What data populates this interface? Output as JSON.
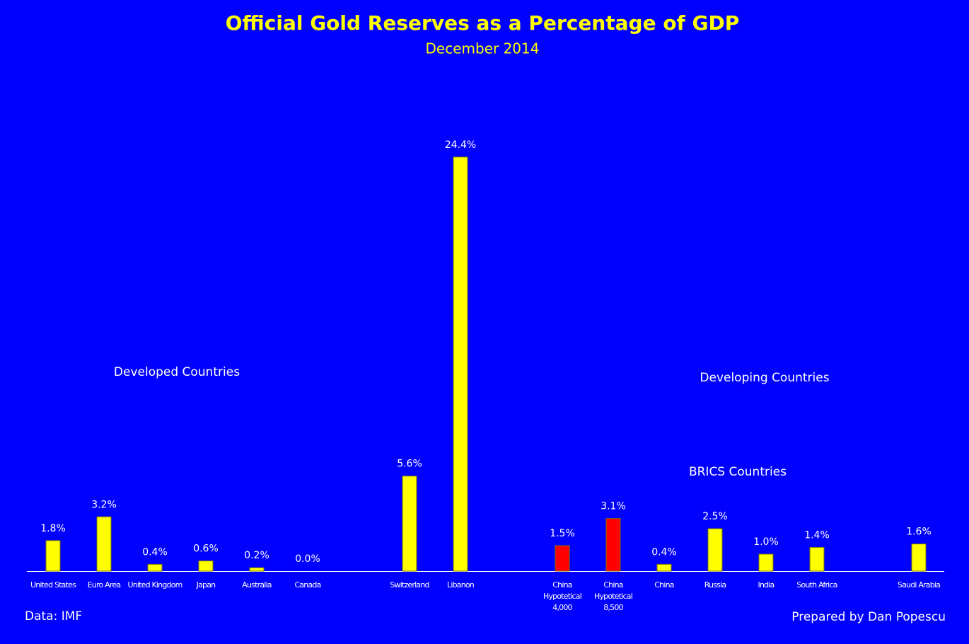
{
  "chart_data": {
    "type": "bar",
    "title": "Official Gold Reserves as a Percentage of GDP",
    "subtitle": "December 2014",
    "annotations": [
      "Developed Countries",
      "Developing Countries",
      "BRICS Countries",
      "Data: IMF",
      "Prepared by Dan Popescu"
    ],
    "categories": [
      "United States",
      "Euro Area",
      "United Kingdom",
      "Japan",
      "Australia",
      "Canada",
      null,
      "Switzerland",
      "Libanon",
      null,
      "China\nHypotetical\n4,000",
      "China\nHypotetical\n8,500",
      "China",
      "Russia",
      "India",
      "South Africa",
      null,
      "Saudi Arabia"
    ],
    "values": [
      1.8,
      3.2,
      0.4,
      0.6,
      0.2,
      0.0,
      null,
      5.6,
      24.4,
      null,
      1.5,
      3.1,
      0.4,
      2.5,
      1.0,
      1.4,
      null,
      1.6
    ],
    "value_labels": [
      "1.8%",
      "3.2%",
      "0.4%",
      "0.6%",
      "0.2%",
      "0.0%",
      null,
      "5.6%",
      "24.4%",
      null,
      "1.5%",
      "3.1%",
      "0.4%",
      "2.5%",
      "1.0%",
      "1.4%",
      null,
      "1.6%"
    ],
    "colors": [
      "#ffff00",
      "#ffff00",
      "#ffff00",
      "#ffff00",
      "#ffff00",
      "#ffff00",
      null,
      "#ffff00",
      "#ffff00",
      null,
      "#ff0000",
      "#ff0000",
      "#ffff00",
      "#ffff00",
      "#ffff00",
      "#ffff00",
      null,
      "#ffff00"
    ],
    "ylim": [
      0,
      25
    ]
  }
}
